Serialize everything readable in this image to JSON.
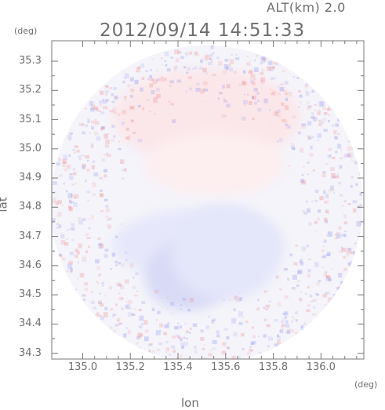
{
  "header": {
    "altitude_label": "ALT(km) 2.0",
    "timestamp": "2012/09/14 14:51:33"
  },
  "axes": {
    "x_label": "lon",
    "y_label": "lat",
    "x_unit": "(deg)",
    "y_unit": "(deg)",
    "x_range": [
      134.87,
      136.18
    ],
    "y_range": [
      34.28,
      35.37
    ],
    "x_ticks": [
      {
        "value": 135.0,
        "label": "135.0"
      },
      {
        "value": 135.2,
        "label": "135.2"
      },
      {
        "value": 135.4,
        "label": "135.4"
      },
      {
        "value": 135.6,
        "label": "135.6"
      },
      {
        "value": 135.8,
        "label": "135.8"
      },
      {
        "value": 136.0,
        "label": "136.0"
      }
    ],
    "y_ticks": [
      {
        "value": 35.3,
        "label": "35.3"
      },
      {
        "value": 35.2,
        "label": "35.2"
      },
      {
        "value": 35.1,
        "label": "35.1"
      },
      {
        "value": 35.0,
        "label": "35.0"
      },
      {
        "value": 34.9,
        "label": "34.9"
      },
      {
        "value": 34.8,
        "label": "34.8"
      },
      {
        "value": 34.7,
        "label": "34.7"
      },
      {
        "value": 34.6,
        "label": "34.6"
      },
      {
        "value": 34.5,
        "label": "34.5"
      },
      {
        "value": 34.4,
        "label": "34.4"
      },
      {
        "value": 34.3,
        "label": "34.3"
      }
    ]
  },
  "field": {
    "center_lon": 135.52,
    "center_lat": 34.81,
    "radius_lon": 0.655,
    "radius_lat": 0.545,
    "positive_color": "#f08a8a",
    "negative_color": "#8a8af0"
  }
}
